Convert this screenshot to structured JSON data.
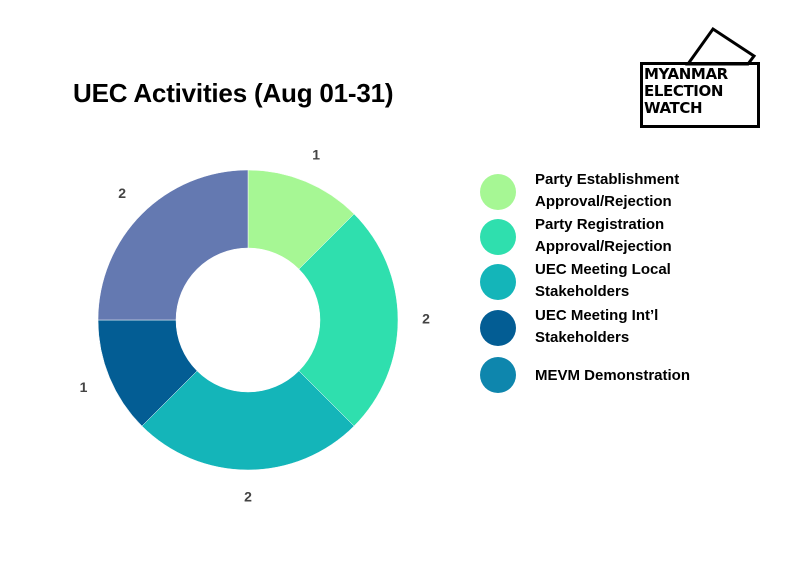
{
  "title": "UEC Activities (Aug 01-31)",
  "logo": {
    "lines": [
      "MYANMAR",
      "ELECTION",
      "WATCH"
    ]
  },
  "chart_data": {
    "type": "pie",
    "donut": true,
    "title": "UEC Activities (Aug 01-31)",
    "categories": [
      "Party Establishment Approval/Rejection",
      "Party Registration Approval/Rejection",
      "UEC Meeting Local Stakeholders",
      "UEC Meeting Int’l Stakeholders",
      "MEVM Demonstration"
    ],
    "legend_lines": [
      "Party Establishment\nApproval/Rejection",
      "Party Registration\nApproval/Rejection",
      "UEC Meeting Local\nStakeholders",
      "UEC Meeting Int’l\nStakeholders",
      "MEVM Demonstration"
    ],
    "legend_colors": [
      "#a6f794",
      "#2fdfae",
      "#14b5b9",
      "#035d94",
      "#0e86ad"
    ],
    "slices": [
      {
        "label": "1",
        "value": 1,
        "color": "#a6f794"
      },
      {
        "label": "2",
        "value": 2,
        "color": "#2fdfae"
      },
      {
        "label": "2",
        "value": 2,
        "color": "#14b5b9"
      },
      {
        "label": "1",
        "value": 1,
        "color": "#035d94"
      },
      {
        "label": "2",
        "value": 2,
        "color": "#6479b1"
      }
    ],
    "legend_position": "right"
  }
}
